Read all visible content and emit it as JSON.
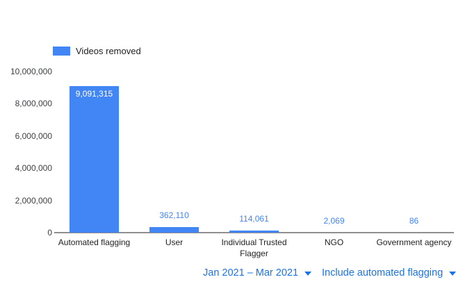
{
  "chart_data": {
    "type": "bar",
    "title": "",
    "xlabel": "",
    "ylabel": "",
    "legend_position": "top-left",
    "legend": [
      {
        "label": "Videos removed",
        "color": "#4285f4"
      }
    ],
    "categories": [
      "Automated flagging",
      "User",
      "Individual Trusted Flagger",
      "NGO",
      "Government agency"
    ],
    "series": [
      {
        "name": "Videos removed",
        "values": [
          9091315,
          362110,
          114061,
          2069,
          86
        ]
      }
    ],
    "value_labels": [
      "9,091,315",
      "362,110",
      "114,061",
      "2,069",
      "86"
    ],
    "ylim": [
      0,
      10000000
    ],
    "grid": false,
    "yticks": [
      {
        "value": 0,
        "label": "0"
      },
      {
        "value": 2000000,
        "label": "2,000,000"
      },
      {
        "value": 4000000,
        "label": "4,000,000"
      },
      {
        "value": 6000000,
        "label": "6,000,000"
      },
      {
        "value": 8000000,
        "label": "8,000,000"
      },
      {
        "value": 10000000,
        "label": "10,000,000"
      }
    ],
    "colors": {
      "bar": "#4285f4",
      "value_label": "#4285f4",
      "value_label_inside": "#ffffff",
      "axis_line": "#8f8f8f",
      "tick_text": "#3c4043",
      "category_text": "#202124"
    }
  },
  "controls": {
    "date_range_label": "Jan 2021 – Mar 2021",
    "filter_label": "Include automated flagging",
    "accent_color": "#1a73e8"
  }
}
